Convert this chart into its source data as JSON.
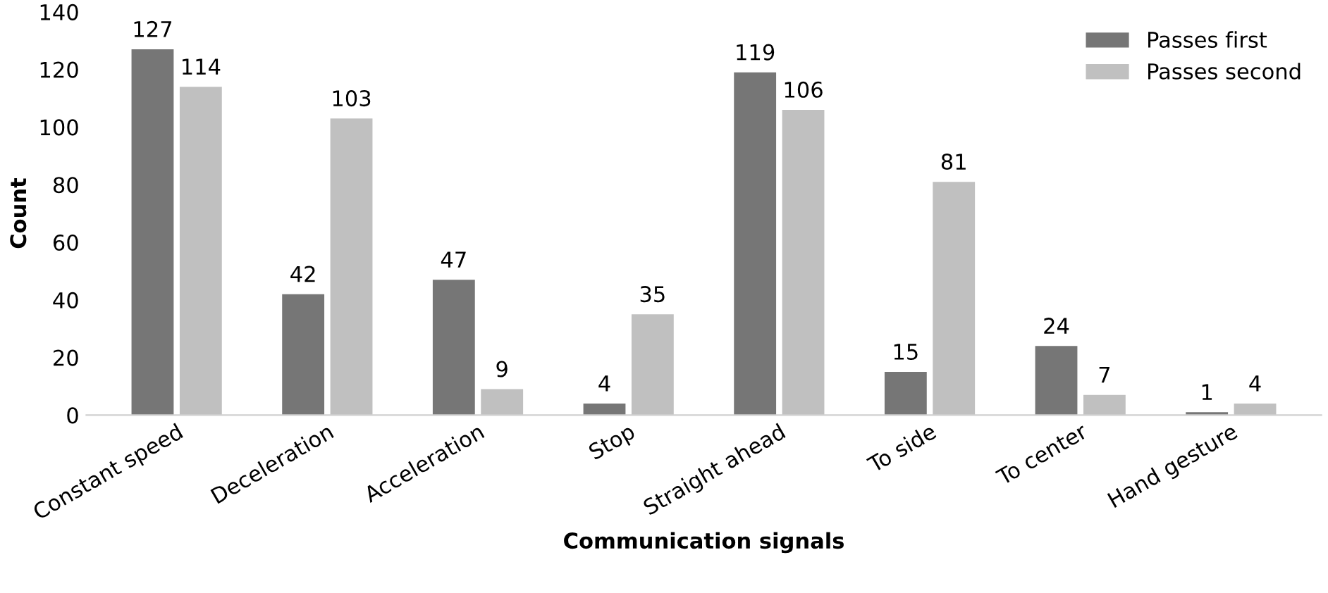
{
  "chart_data": {
    "type": "bar",
    "xlabel": "Communication signals",
    "ylabel": "Count",
    "categories": [
      "Constant speed",
      "Deceleration",
      "Acceleration",
      "Stop",
      "Straight ahead",
      "To side",
      "To center",
      "Hand gesture"
    ],
    "series": [
      {
        "name": "Passes first",
        "color": "#767676",
        "values": [
          127,
          42,
          47,
          4,
          119,
          15,
          24,
          1
        ]
      },
      {
        "name": "Passes second",
        "color": "#c0c0c0",
        "values": [
          114,
          103,
          9,
          35,
          106,
          81,
          7,
          4
        ]
      }
    ],
    "ylim": [
      0,
      140
    ],
    "yticks": [
      0,
      20,
      40,
      60,
      80,
      100,
      120,
      140
    ],
    "data_labels": true,
    "legend": "top right",
    "grid": false
  }
}
